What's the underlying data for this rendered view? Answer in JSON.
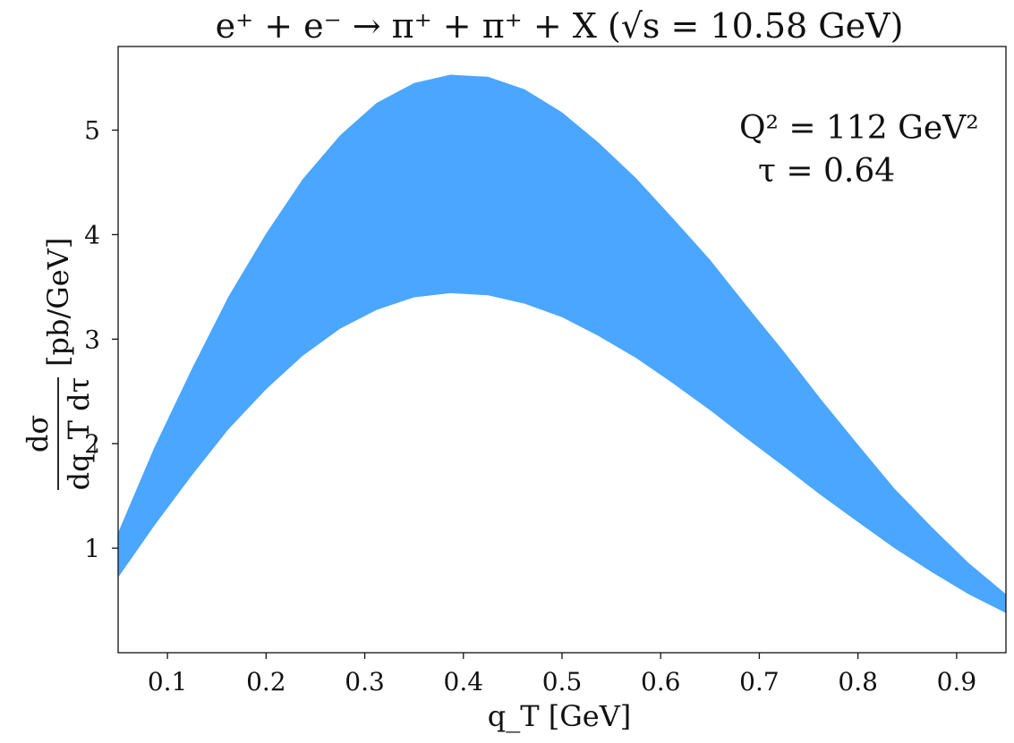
{
  "chart_data": {
    "type": "area",
    "title": "e⁺ + e⁻ → π⁺ + π⁺ + X  (√s = 10.58 GeV)",
    "xlabel": "q_T [GeV]",
    "ylabel": {
      "numerator": "dσ",
      "denominator": "dq_T dτ",
      "unit": "[pb/GeV]"
    },
    "annotation": {
      "line1": "Q² = 112 GeV²",
      "line2": "τ = 0.64"
    },
    "xlim": [
      0.05,
      0.95
    ],
    "ylim": [
      0.0,
      5.8
    ],
    "xticks": [
      0.1,
      0.2,
      0.3,
      0.4,
      0.5,
      0.6,
      0.7,
      0.8,
      0.9
    ],
    "yticks": [
      1,
      2,
      3,
      4,
      5
    ],
    "xtick_labels": [
      "0.1",
      "0.2",
      "0.3",
      "0.4",
      "0.5",
      "0.6",
      "0.7",
      "0.8",
      "0.9"
    ],
    "ytick_labels": [
      "1",
      "2",
      "3",
      "4",
      "5"
    ],
    "grid": false,
    "legend": "none",
    "band_color": "#4aa6ff",
    "series": [
      {
        "x": [
          0.05,
          0.087,
          0.125,
          0.162,
          0.2,
          0.237,
          0.275,
          0.312,
          0.35,
          0.387,
          0.425,
          0.462,
          0.5,
          0.537,
          0.575,
          0.612,
          0.65,
          0.687,
          0.725,
          0.762,
          0.8,
          0.837,
          0.875,
          0.912,
          0.95
        ],
        "upper": [
          1.15,
          1.97,
          2.72,
          3.41,
          4.01,
          4.53,
          4.95,
          5.26,
          5.45,
          5.53,
          5.51,
          5.39,
          5.17,
          4.88,
          4.54,
          4.16,
          3.76,
          3.32,
          2.88,
          2.43,
          1.99,
          1.57,
          1.2,
          0.86,
          0.56
        ],
        "lower": [
          0.72,
          1.22,
          1.7,
          2.14,
          2.52,
          2.84,
          3.1,
          3.28,
          3.4,
          3.44,
          3.42,
          3.34,
          3.21,
          3.03,
          2.82,
          2.58,
          2.32,
          2.05,
          1.78,
          1.51,
          1.25,
          1.0,
          0.77,
          0.56,
          0.38
        ]
      }
    ]
  }
}
